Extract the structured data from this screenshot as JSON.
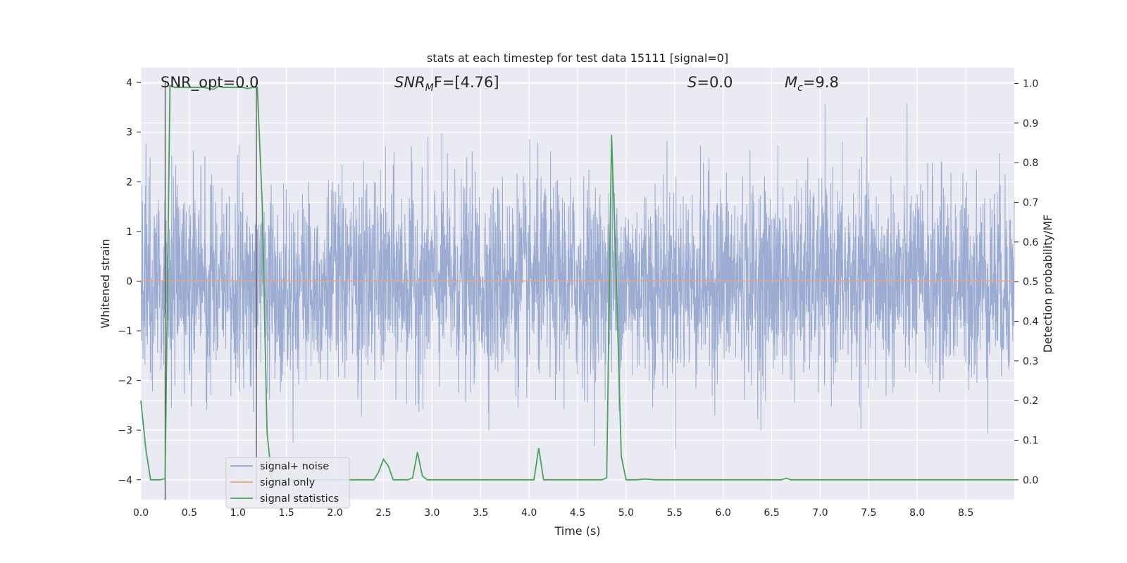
{
  "chart_data": {
    "type": "line",
    "title": "stats at each timestep for test data 15111 [signal=0]",
    "xlabel": "Time (s)",
    "ylabel_left": "Whitened strain",
    "ylabel_right": "Detection probability/MF",
    "xlim": [
      0.0,
      9.0
    ],
    "ylim_left": [
      -4.4,
      4.3
    ],
    "ylim_right": [
      -0.05,
      1.04
    ],
    "x_ticks": [
      "0.0",
      "0.5",
      "1.0",
      "1.5",
      "2.0",
      "2.5",
      "3.0",
      "3.5",
      "4.0",
      "4.5",
      "5.0",
      "5.5",
      "6.0",
      "6.5",
      "7.0",
      "7.5",
      "8.0",
      "8.5"
    ],
    "y_ticks_left": [
      "4",
      "3",
      "2",
      "1",
      "0",
      "−1",
      "−2",
      "−3",
      "−4"
    ],
    "y_ticks_right": [
      "1.0",
      "0.9",
      "0.8",
      "0.7",
      "0.6",
      "0.5",
      "0.4",
      "0.3",
      "0.2",
      "0.1",
      "0.0"
    ],
    "grid": true,
    "legend_position": "lower-left",
    "annotations": {
      "snr_opt": "SNR_opt=0.0",
      "snr_mf_base": "SNR",
      "snr_mf_sub": "M",
      "snr_mf_rest": "F=[4.76]",
      "s_base": "S",
      "s_rest": "=0.0",
      "mc_base": "M",
      "mc_sub": "c",
      "mc_rest": "=9.8"
    },
    "vertical_lines_x": [
      0.25,
      1.19
    ],
    "series": [
      {
        "name": "signal+ noise",
        "axis": "left",
        "color": "#8da0cb",
        "description_values": "whitened noise, amplitude roughly within [-4, 4]"
      },
      {
        "name": "signal only",
        "axis": "left",
        "color": "#e8a48a",
        "constant_value": 0
      },
      {
        "name": "signal statistics",
        "axis": "right",
        "color": "#4aa35a",
        "x": [
          0.0,
          0.05,
          0.1,
          0.15,
          0.2,
          0.25,
          0.3,
          0.35,
          0.45,
          0.55,
          0.65,
          0.75,
          0.8,
          0.85,
          0.95,
          1.05,
          1.1,
          1.15,
          1.2,
          1.25,
          1.3,
          1.35,
          1.45,
          2.4,
          2.45,
          2.5,
          2.55,
          2.6,
          2.75,
          2.8,
          2.85,
          2.9,
          2.95,
          3.0,
          4.05,
          4.1,
          4.15,
          4.2,
          4.75,
          4.8,
          4.85,
          4.9,
          4.95,
          5.0,
          5.1,
          5.2,
          5.3,
          6.6,
          6.65,
          6.7,
          6.8,
          6.9,
          7.0,
          9.0
        ],
        "values": [
          0.2,
          0.08,
          0.0,
          0.0,
          0.0,
          0.003,
          0.995,
          0.99,
          0.99,
          0.99,
          0.99,
          0.985,
          0.993,
          0.99,
          0.99,
          0.99,
          0.987,
          0.99,
          0.99,
          0.7,
          0.12,
          0.0,
          0.0,
          0.0,
          0.02,
          0.052,
          0.035,
          0.0,
          0.0,
          0.005,
          0.07,
          0.01,
          0.0,
          0.0,
          0.0,
          0.08,
          0.0,
          0.0,
          0.0,
          0.005,
          0.87,
          0.5,
          0.06,
          0.0,
          0.0,
          0.002,
          0.0,
          0.0,
          0.004,
          0.0,
          0.0,
          0.0,
          0.0,
          0.0
        ]
      }
    ]
  },
  "colors": {
    "plot_bg": "#eaeaf2",
    "grid": "#ffffff",
    "vline": "#555555"
  }
}
